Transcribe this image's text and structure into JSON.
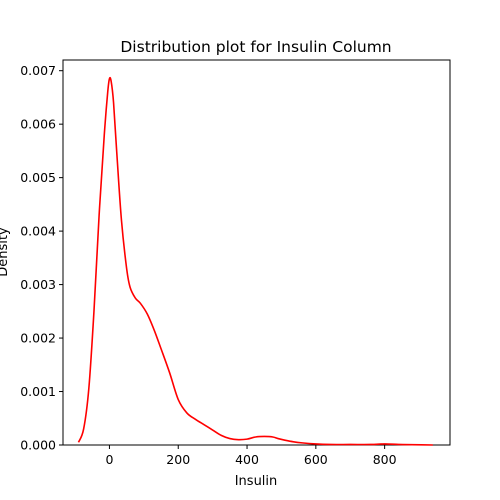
{
  "chart_data": {
    "type": "line",
    "title": "Distribution plot for Insulin Column",
    "xlabel": "Insulin",
    "ylabel": "Density",
    "xlim": [
      -135,
      990
    ],
    "ylim": [
      0,
      0.0072
    ],
    "xticks": [
      0,
      200,
      400,
      600,
      800
    ],
    "xtick_labels": [
      "0",
      "200",
      "400",
      "600",
      "800"
    ],
    "yticks": [
      0,
      0.001,
      0.002,
      0.003,
      0.004,
      0.005,
      0.006,
      0.007
    ],
    "ytick_labels": [
      "0.000",
      "0.001",
      "0.002",
      "0.003",
      "0.004",
      "0.005",
      "0.006",
      "0.007"
    ],
    "grid": false,
    "series": [
      {
        "color": "#ff0000",
        "x": [
          -90,
          -75,
          -60,
          -45,
          -30,
          -15,
          -5,
          0,
          5,
          12,
          22,
          35,
          50,
          60,
          75,
          90,
          110,
          130,
          150,
          175,
          200,
          225,
          250,
          275,
          300,
          325,
          350,
          375,
          400,
          425,
          450,
          475,
          490,
          510,
          535,
          560,
          600,
          640,
          700,
          760,
          800,
          840,
          880,
          940
        ],
        "y": [
          5e-05,
          0.0003,
          0.00105,
          0.0025,
          0.0043,
          0.0058,
          0.0066,
          0.00685,
          0.0068,
          0.0064,
          0.0054,
          0.0042,
          0.0033,
          0.00295,
          0.00275,
          0.00265,
          0.00245,
          0.00215,
          0.0018,
          0.00135,
          0.00085,
          0.0006,
          0.00048,
          0.00038,
          0.00028,
          0.00018,
          0.00012,
          0.0001,
          0.00011,
          0.00015,
          0.00016,
          0.00015,
          0.00012,
          9e-05,
          6e-05,
          4e-05,
          2e-05,
          1e-05,
          1e-05,
          1e-05,
          2e-05,
          1e-05,
          5e-06,
          0.0
        ]
      }
    ]
  }
}
